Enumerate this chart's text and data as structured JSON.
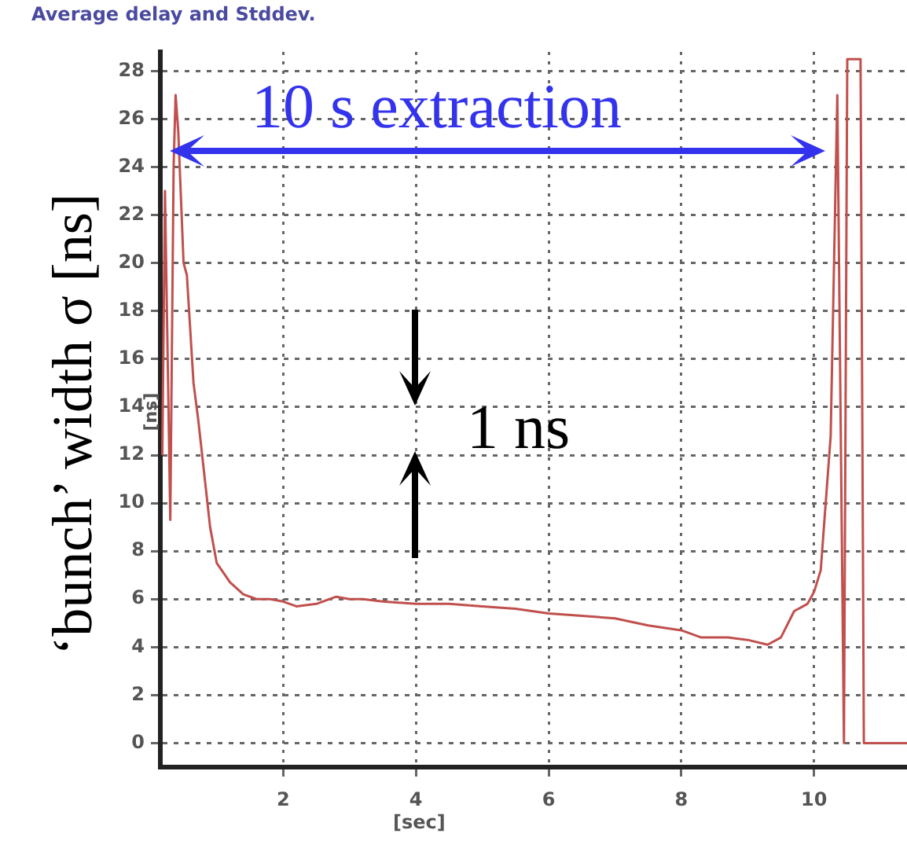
{
  "chart_data": {
    "type": "line",
    "title": "Average delay and Stddev.",
    "xlabel": "[sec]",
    "ylabel": "‘bunch’ width σ [ns]",
    "annotations": [
      "10 s extraction",
      "1 ns",
      "[ns]"
    ],
    "x": [
      0.18,
      0.22,
      0.3,
      0.35,
      0.38,
      0.42,
      0.5,
      0.55,
      0.65,
      0.72,
      0.8,
      0.9,
      1.0,
      1.2,
      1.4,
      1.6,
      1.8,
      2.0,
      2.2,
      2.5,
      2.8,
      3.0,
      3.2,
      3.5,
      4.0,
      4.5,
      5.0,
      5.5,
      6.0,
      6.5,
      7.0,
      7.5,
      8.0,
      8.3,
      8.7,
      9.0,
      9.3,
      9.5,
      9.7,
      9.9,
      10.0,
      10.1,
      10.25,
      10.35,
      10.45,
      10.5,
      10.7,
      10.75,
      11.4
    ],
    "series": [
      {
        "color": "#c0504d",
        "values": [
          12,
          23,
          9.3,
          24,
          27,
          25.5,
          20,
          19.5,
          15,
          13.5,
          11.5,
          9,
          7.5,
          6.7,
          6.2,
          6.0,
          6.0,
          5.9,
          5.7,
          5.8,
          6.1,
          6.0,
          6.0,
          5.9,
          5.8,
          5.8,
          5.7,
          5.6,
          5.4,
          5.3,
          5.2,
          4.9,
          4.7,
          4.4,
          4.4,
          4.3,
          4.1,
          4.4,
          5.5,
          5.8,
          6.3,
          7.2,
          12.8,
          27,
          0,
          28.5,
          28.5,
          0,
          0
        ]
      }
    ],
    "xlim": [
      0.15,
      11.4
    ],
    "ylim": [
      -1,
      28.8
    ],
    "xticks": [
      2,
      4,
      6,
      8,
      10
    ],
    "yticks": [
      0,
      2,
      4,
      6,
      8,
      10,
      12,
      14,
      16,
      18,
      20,
      22,
      24,
      26,
      28
    ],
    "grid": true,
    "legend": false,
    "marker": "none"
  }
}
